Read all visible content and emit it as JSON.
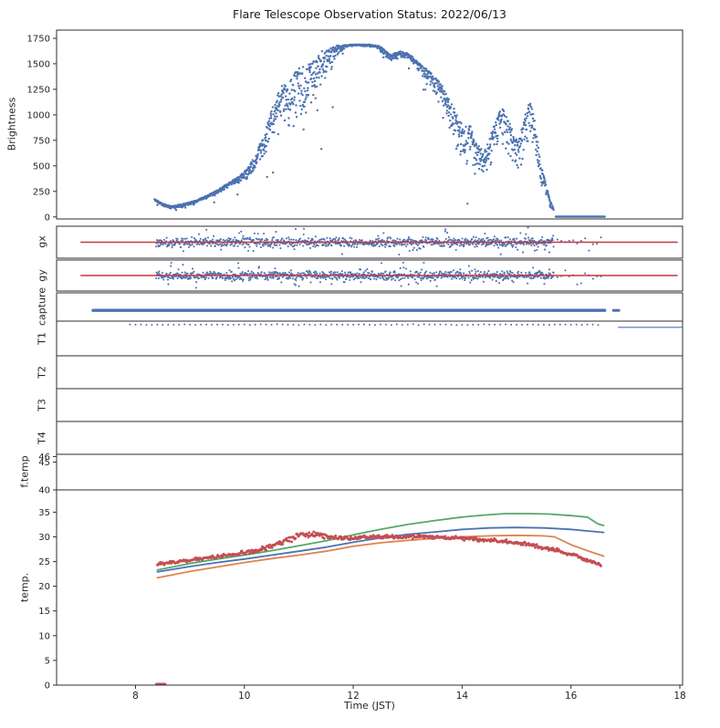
{
  "title": "Flare Telescope Observation Status: 2022/06/13",
  "xlabel": "Time (JST)",
  "xlim": [
    6.55,
    18.05
  ],
  "xticks": [
    8,
    10,
    12,
    14,
    16,
    18
  ],
  "colors": {
    "blue": "#4c72b0",
    "red": "#c7383b",
    "green": "#55a868",
    "orange": "#dd8452",
    "scatter_red": "#c44e52",
    "frame": "#2e2e2e",
    "text": "#262626"
  },
  "chart_data": [
    {
      "id": "brightness",
      "type": "scatter",
      "ylabel": "Brightness",
      "ylim": [
        -20,
        1830
      ],
      "yticks": [
        0,
        250,
        500,
        750,
        1000,
        1250,
        1500,
        1750
      ],
      "series": [
        {
          "type": "scatter",
          "color": "blue",
          "size": 1.2,
          "density": 210,
          "down": true,
          "outlier_prob": 0.06,
          "keypoints": [
            [
              8.35,
              175
            ],
            [
              8.5,
              130
            ],
            [
              8.65,
              105
            ],
            [
              8.9,
              130
            ],
            [
              9.1,
              160
            ],
            [
              9.3,
              205
            ],
            [
              9.5,
              260
            ],
            [
              9.7,
              330
            ],
            [
              9.9,
              400
            ],
            [
              10.05,
              470
            ],
            [
              10.2,
              600
            ],
            [
              10.35,
              800
            ],
            [
              10.5,
              1050
            ],
            [
              10.65,
              1280
            ],
            [
              10.8,
              1310
            ],
            [
              10.95,
              1430
            ],
            [
              11.1,
              1500
            ],
            [
              11.25,
              1530
            ],
            [
              11.4,
              1620
            ],
            [
              11.55,
              1660
            ],
            [
              11.7,
              1678
            ],
            [
              11.9,
              1686
            ],
            [
              12.1,
              1690
            ],
            [
              12.3,
              1688
            ],
            [
              12.5,
              1672
            ],
            [
              12.6,
              1625
            ],
            [
              12.7,
              1585
            ],
            [
              12.8,
              1615
            ],
            [
              12.9,
              1625
            ],
            [
              13.0,
              1600
            ],
            [
              13.1,
              1565
            ],
            [
              13.2,
              1510
            ],
            [
              13.35,
              1450
            ],
            [
              13.5,
              1370
            ],
            [
              13.65,
              1280
            ],
            [
              13.8,
              1120
            ],
            [
              13.95,
              950
            ],
            [
              14.05,
              880
            ],
            [
              14.15,
              900
            ],
            [
              14.25,
              720
            ],
            [
              14.4,
              650
            ],
            [
              14.55,
              850
            ],
            [
              14.65,
              1020
            ],
            [
              14.75,
              1060
            ],
            [
              14.85,
              950
            ],
            [
              14.95,
              820
            ],
            [
              15.05,
              780
            ],
            [
              15.15,
              1000
            ],
            [
              15.25,
              1150
            ],
            [
              15.35,
              900
            ],
            [
              15.45,
              520
            ],
            [
              15.55,
              300
            ],
            [
              15.62,
              160
            ],
            [
              15.68,
              80
            ]
          ],
          "noise_key": [
            [
              8.35,
              25
            ],
            [
              9.4,
              30
            ],
            [
              9.9,
              60
            ],
            [
              10.2,
              150
            ],
            [
              10.5,
              350
            ],
            [
              10.8,
              500
            ],
            [
              11.1,
              550
            ],
            [
              11.35,
              500
            ],
            [
              11.55,
              300
            ],
            [
              11.7,
              120
            ],
            [
              11.85,
              30
            ],
            [
              12.0,
              16
            ],
            [
              12.4,
              20
            ],
            [
              12.55,
              60
            ],
            [
              12.7,
              80
            ],
            [
              13.0,
              60
            ],
            [
              13.2,
              90
            ],
            [
              13.4,
              150
            ],
            [
              13.6,
              250
            ],
            [
              13.8,
              350
            ],
            [
              14.0,
              400
            ],
            [
              14.2,
              350
            ],
            [
              14.4,
              300
            ],
            [
              14.6,
              350
            ],
            [
              14.8,
              350
            ],
            [
              15.0,
              350
            ],
            [
              15.2,
              400
            ],
            [
              15.35,
              350
            ],
            [
              15.45,
              250
            ],
            [
              15.55,
              120
            ],
            [
              15.68,
              40
            ]
          ]
        },
        {
          "type": "line",
          "color": "blue",
          "width": 2.4,
          "keypoints": [
            [
              15.72,
              2
            ],
            [
              16.62,
              2
            ]
          ]
        }
      ]
    },
    {
      "id": "gx",
      "ylabel": "gx",
      "ylim": [
        -1.35,
        1.35
      ],
      "series": [
        {
          "type": "scatter",
          "color": "blue",
          "size": 1.05,
          "density": 130,
          "noise": 0.45,
          "outlier_prob": 0.15,
          "keypoints": [
            [
              8.38,
              0
            ],
            [
              15.68,
              0
            ]
          ]
        },
        {
          "type": "scatter",
          "color": "blue",
          "size": 1.05,
          "density": 14,
          "noise": 0.5,
          "outlier_prob": 0.2,
          "keypoints": [
            [
              15.75,
              0
            ],
            [
              16.55,
              0
            ]
          ]
        },
        {
          "type": "hline",
          "color": "red",
          "y": 0,
          "x": [
            7.0,
            17.95
          ],
          "width": 1.6
        }
      ]
    },
    {
      "id": "gy",
      "ylabel": "gy",
      "ylim": [
        -1.35,
        1.35
      ],
      "series": [
        {
          "type": "scatter",
          "color": "blue",
          "size": 1.05,
          "density": 130,
          "noise": 0.45,
          "outlier_prob": 0.15,
          "keypoints": [
            [
              8.38,
              0
            ],
            [
              15.68,
              0
            ]
          ]
        },
        {
          "type": "scatter",
          "color": "blue",
          "size": 1.05,
          "density": 14,
          "noise": 0.5,
          "outlier_prob": 0.2,
          "keypoints": [
            [
              15.75,
              0
            ],
            [
              16.55,
              0
            ]
          ]
        },
        {
          "type": "hline",
          "color": "red",
          "y": 0,
          "x": [
            7.0,
            17.95
          ],
          "width": 1.6
        }
      ]
    },
    {
      "id": "capture",
      "ylabel": "capture",
      "ylim": [
        0,
        1
      ],
      "series": [
        {
          "type": "hline",
          "color": "blue",
          "y": 0.38,
          "x": [
            7.22,
            16.62
          ],
          "width": 3.4
        },
        {
          "type": "hline",
          "color": "blue",
          "y": 0.38,
          "x": [
            16.78,
            16.88
          ],
          "width": 3.0
        }
      ]
    },
    {
      "id": "T1",
      "ylabel": "T1",
      "ylim": [
        0,
        1
      ],
      "series": [
        {
          "type": "scatter",
          "color": "blue",
          "size": 1.0,
          "density": 10,
          "noise": 0.015,
          "keypoints": [
            [
              7.9,
              0.9
            ],
            [
              16.5,
              0.9
            ]
          ]
        },
        {
          "type": "line",
          "color": "blue",
          "width": 1.2,
          "keypoints": [
            [
              16.87,
              0.82
            ],
            [
              18.03,
              0.82
            ]
          ]
        }
      ]
    },
    {
      "id": "T2",
      "ylabel": "T2",
      "ylim": [
        0,
        1
      ],
      "series": []
    },
    {
      "id": "T3",
      "ylabel": "T3",
      "ylim": [
        0,
        1
      ],
      "series": []
    },
    {
      "id": "T4",
      "ylabel": "T4",
      "ylim": [
        0,
        1
      ],
      "series": []
    },
    {
      "id": "ftemp",
      "ylabel": "f.temp",
      "ylim": [
        40,
        46.4
      ],
      "yticks": [
        40,
        45,
        46
      ],
      "series": []
    },
    {
      "id": "temp",
      "ylabel": "temp.",
      "ylim": [
        0,
        39.5
      ],
      "yticks": [
        0,
        5,
        10,
        15,
        20,
        25,
        30,
        35
      ],
      "series": [
        {
          "type": "line",
          "color": "blue",
          "width": 1.8,
          "keypoints": [
            [
              8.4,
              22.9
            ],
            [
              9,
              24.0
            ],
            [
              9.5,
              24.8
            ],
            [
              10,
              25.5
            ],
            [
              10.5,
              26.3
            ],
            [
              11,
              27.1
            ],
            [
              11.5,
              27.9
            ],
            [
              12,
              28.9
            ],
            [
              12.5,
              29.8
            ],
            [
              13,
              30.5
            ],
            [
              13.5,
              31.0
            ],
            [
              14,
              31.5
            ],
            [
              14.5,
              31.8
            ],
            [
              15,
              31.9
            ],
            [
              15.5,
              31.8
            ],
            [
              16,
              31.5
            ],
            [
              16.3,
              31.2
            ],
            [
              16.6,
              30.9
            ]
          ]
        },
        {
          "type": "line",
          "color": "orange",
          "width": 1.8,
          "keypoints": [
            [
              8.4,
              21.7
            ],
            [
              9,
              23.0
            ],
            [
              9.5,
              23.9
            ],
            [
              10,
              24.8
            ],
            [
              10.5,
              25.6
            ],
            [
              11,
              26.3
            ],
            [
              11.5,
              27.1
            ],
            [
              12,
              28.1
            ],
            [
              12.5,
              28.8
            ],
            [
              13,
              29.3
            ],
            [
              13.5,
              29.7
            ],
            [
              14,
              30.0
            ],
            [
              14.5,
              30.2
            ],
            [
              15,
              30.3
            ],
            [
              15.5,
              30.2
            ],
            [
              15.7,
              30.0
            ],
            [
              16,
              28.4
            ],
            [
              16.3,
              27.2
            ],
            [
              16.6,
              26.1
            ]
          ]
        },
        {
          "type": "line",
          "color": "green",
          "width": 1.8,
          "keypoints": [
            [
              8.4,
              23.3
            ],
            [
              9,
              24.6
            ],
            [
              9.5,
              25.5
            ],
            [
              10,
              26.3
            ],
            [
              10.5,
              27.2
            ],
            [
              11,
              28.2
            ],
            [
              11.5,
              29.2
            ],
            [
              12,
              30.4
            ],
            [
              12.5,
              31.5
            ],
            [
              13,
              32.5
            ],
            [
              13.5,
              33.3
            ],
            [
              14,
              34.0
            ],
            [
              14.4,
              34.4
            ],
            [
              14.8,
              34.7
            ],
            [
              15.2,
              34.7
            ],
            [
              15.6,
              34.6
            ],
            [
              16,
              34.3
            ],
            [
              16.3,
              34.0
            ],
            [
              16.4,
              33.3
            ],
            [
              16.5,
              32.6
            ],
            [
              16.6,
              32.3
            ]
          ]
        },
        {
          "type": "scatter",
          "color": "scatter_red",
          "size": 1.4,
          "density": 72,
          "keypoints": [
            [
              8.4,
              24.5
            ],
            [
              9,
              25.3
            ],
            [
              9.5,
              26.0
            ],
            [
              10,
              26.8
            ],
            [
              10.4,
              27.8
            ],
            [
              10.7,
              29.0
            ],
            [
              11,
              30.3
            ],
            [
              11.2,
              30.6
            ],
            [
              11.4,
              30.2
            ],
            [
              11.7,
              29.8
            ],
            [
              12,
              29.7
            ],
            [
              12.3,
              30.0
            ],
            [
              12.6,
              30.1
            ],
            [
              13,
              30.0
            ],
            [
              13.4,
              30.0
            ],
            [
              13.8,
              29.8
            ],
            [
              14.2,
              29.6
            ],
            [
              14.6,
              29.2
            ],
            [
              15,
              28.8
            ],
            [
              15.4,
              28.1
            ],
            [
              15.8,
              27.0
            ],
            [
              16.1,
              26.1
            ],
            [
              16.35,
              25.2
            ],
            [
              16.55,
              24.1
            ]
          ],
          "noise_key": [
            [
              8.4,
              0.4
            ],
            [
              10.3,
              0.5
            ],
            [
              10.7,
              0.85
            ],
            [
              11.3,
              0.85
            ],
            [
              11.6,
              0.55
            ],
            [
              12,
              0.45
            ],
            [
              14,
              0.45
            ],
            [
              15.5,
              0.5
            ],
            [
              16.55,
              0.55
            ]
          ]
        },
        {
          "type": "line",
          "color": "scatter_red",
          "width": 2.2,
          "keypoints": [
            [
              8.38,
              0.25
            ],
            [
              8.55,
              0.25
            ]
          ]
        }
      ]
    }
  ]
}
